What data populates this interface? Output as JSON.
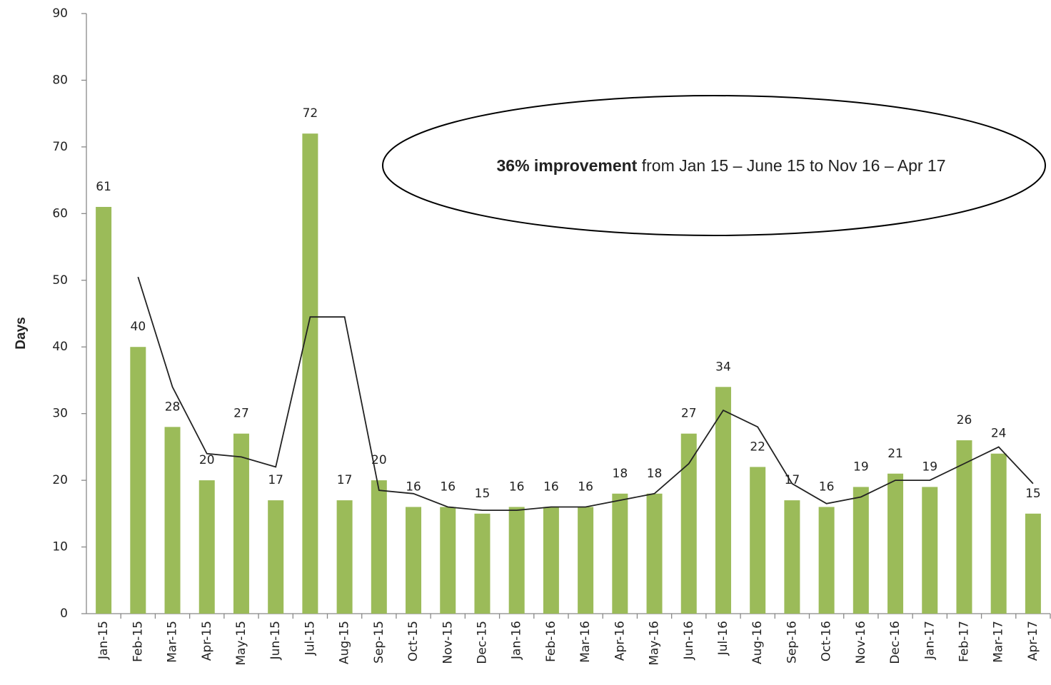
{
  "chart_data": {
    "type": "bar",
    "categories": [
      "Jan-15",
      "Feb-15",
      "Mar-15",
      "Apr-15",
      "May-15",
      "Jun-15",
      "Jul-15",
      "Aug-15",
      "Sep-15",
      "Oct-15",
      "Nov-15",
      "Dec-15",
      "Jan-16",
      "Feb-16",
      "Mar-16",
      "Apr-16",
      "May-16",
      "Jun-16",
      "Jul-16",
      "Aug-16",
      "Sep-16",
      "Oct-16",
      "Nov-16",
      "Dec-16",
      "Jan-17",
      "Feb-17",
      "Mar-17",
      "Apr-17"
    ],
    "series": [
      {
        "type": "bar",
        "color": "#9bbb59",
        "values": [
          61,
          40,
          28,
          20,
          27,
          17,
          72,
          17,
          20,
          16,
          16,
          15,
          16,
          16,
          16,
          18,
          18,
          27,
          34,
          22,
          17,
          16,
          19,
          21,
          19,
          26,
          24,
          15
        ]
      },
      {
        "type": "line",
        "color": "#222222",
        "values": [
          null,
          50.5,
          34,
          24,
          23.5,
          22,
          44.5,
          44.5,
          18.5,
          18,
          16,
          15.5,
          15.5,
          16,
          16,
          17,
          18,
          22.5,
          30.5,
          28,
          19.5,
          16.5,
          17.5,
          20,
          20,
          22.5,
          25,
          19.5
        ]
      }
    ],
    "y_label": "Days",
    "annotation": {
      "bold": "36% improvement",
      "text": " from Jan 15 – June 15 to Nov 16 – Apr 17"
    },
    "ylim": [
      0,
      90
    ],
    "yticks": [
      0,
      10,
      20,
      30,
      40,
      50,
      60,
      70,
      80,
      90
    ]
  }
}
